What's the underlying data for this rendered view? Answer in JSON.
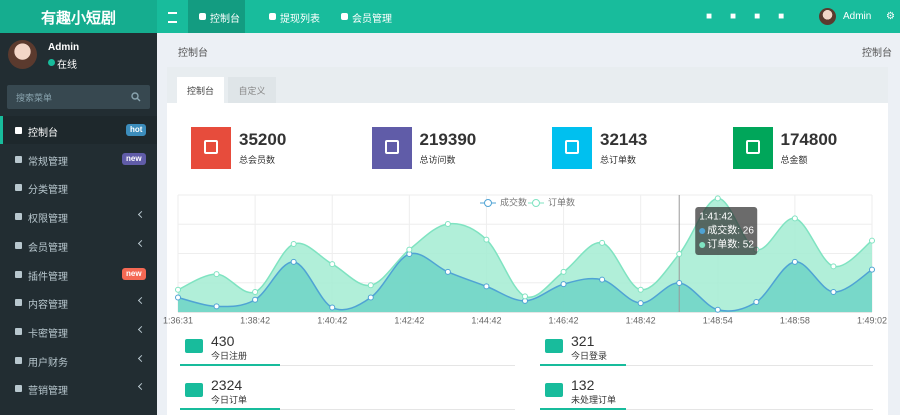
{
  "logo": "有趣小短剧",
  "user": {
    "name": "Admin",
    "status": "在线"
  },
  "search_placeholder": "搜索菜单",
  "menu": [
    {
      "label": "控制台",
      "badge": "hot",
      "badge_color": "#3c8dbc"
    },
    {
      "label": "常规管理",
      "badge": "new",
      "badge_color": "#605ca8"
    },
    {
      "label": "分类管理"
    },
    {
      "label": "权限管理",
      "submenu": true
    },
    {
      "label": "会员管理",
      "submenu": true
    },
    {
      "label": "插件管理",
      "badge": "new",
      "badge_color": "#f56954"
    },
    {
      "label": "内容管理",
      "submenu": true
    },
    {
      "label": "卡密管理",
      "submenu": true
    },
    {
      "label": "用户财务",
      "submenu": true
    },
    {
      "label": "营销管理",
      "submenu": true
    }
  ],
  "topnav": [
    "控制台",
    "提现列表",
    "会员管理"
  ],
  "top_user": "Admin",
  "breadcrumb": "控制台",
  "breadcrumb_right": "控制台",
  "tabs": [
    "控制台",
    "自定义"
  ],
  "stats": [
    {
      "value": 35200,
      "label": "总会员数",
      "color": "#e74c3c"
    },
    {
      "value": 219390,
      "label": "总访问数",
      "color": "#605ca8"
    },
    {
      "value": 32143,
      "label": "总订单数",
      "color": "#00c0ef"
    },
    {
      "value": 174800,
      "label": "总金额",
      "color": "#00a65a"
    }
  ],
  "chart": {
    "type": "line",
    "categories": [
      "1:36:31",
      null,
      "1:38:42",
      null,
      "1:40:42",
      null,
      "1:42:42",
      null,
      "1:44:42",
      null,
      "1:46:42",
      null,
      "1:48:42",
      null,
      "1:48:54",
      null,
      "1:48:58",
      null,
      "1:49:02"
    ],
    "series": [
      {
        "name": "成交数",
        "color": "#4fa3d4",
        "fill": "#6fd3c6",
        "values": [
          13,
          5,
          11,
          45,
          4,
          13,
          52,
          36,
          23,
          10,
          25,
          29,
          8,
          26,
          2,
          9,
          45,
          18,
          38
        ]
      },
      {
        "name": "订单数",
        "color": "#7fe3c1",
        "fill": "#a3ecd2",
        "values": [
          20,
          34,
          18,
          61,
          43,
          24,
          56,
          79,
          65,
          14,
          36,
          62,
          20,
          52,
          102,
          56,
          84,
          41,
          64
        ]
      }
    ],
    "ylim": [
      0,
      105
    ],
    "tooltip": {
      "index": 13,
      "title": "1:41:42",
      "items": [
        "成交数: 26",
        "订单数: 52"
      ]
    }
  },
  "today": [
    {
      "value": 430,
      "label": "今日注册"
    },
    {
      "value": 321,
      "label": "今日登录"
    },
    {
      "value": 2324,
      "label": "今日订单"
    },
    {
      "value": 132,
      "label": "未处理订单"
    }
  ]
}
